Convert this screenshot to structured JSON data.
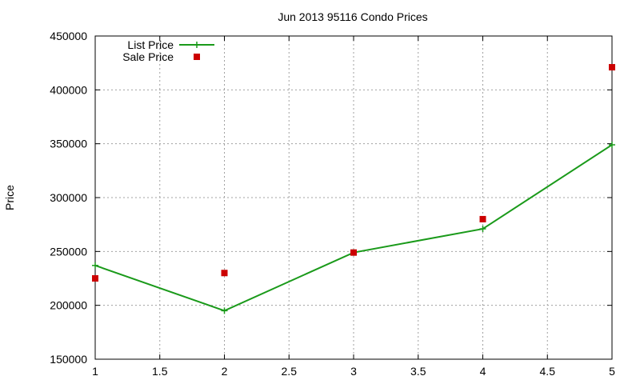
{
  "chart_data": {
    "type": "line",
    "title": "Jun 2013 95116 Condo Prices",
    "xlabel": "",
    "ylabel": "Price",
    "xlim": [
      1,
      5
    ],
    "ylim": [
      150000,
      450000
    ],
    "x_ticks": [
      "1",
      "1.5",
      "2",
      "2.5",
      "3",
      "3.5",
      "4",
      "4.5",
      "5"
    ],
    "y_ticks": [
      "150000",
      "200000",
      "250000",
      "300000",
      "350000",
      "400000",
      "450000"
    ],
    "grid": true,
    "legend_position": "top-left",
    "series": [
      {
        "name": "List Price",
        "style": "line+plus",
        "color": "#1a9a1a",
        "x": [
          1,
          2,
          3,
          4,
          5
        ],
        "y": [
          237000,
          195000,
          249000,
          271000,
          349000
        ]
      },
      {
        "name": "Sale Price",
        "style": "square-points",
        "color": "#cc0000",
        "x": [
          1,
          2,
          3,
          4,
          5
        ],
        "y": [
          225000,
          230000,
          249000,
          280000,
          421000
        ]
      }
    ]
  }
}
